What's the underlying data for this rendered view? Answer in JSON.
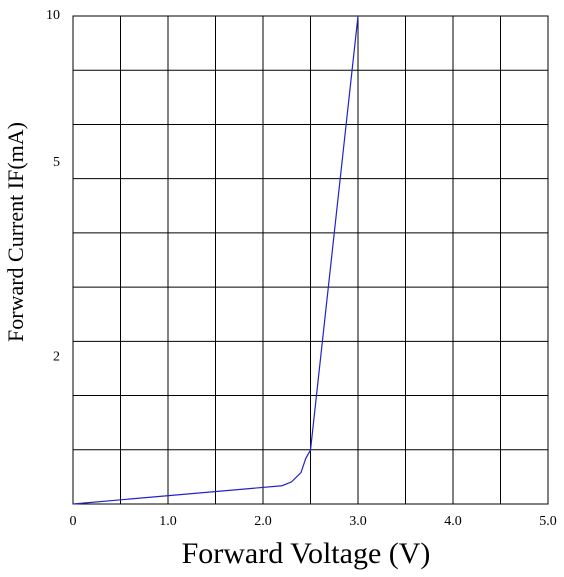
{
  "chart_data": {
    "type": "line",
    "xlabel": "Forward  Voltage  (V)",
    "ylabel": "Forward Current IF(mA)",
    "xlim": [
      0,
      5
    ],
    "xticks": [
      0,
      {
        "value": 1,
        "label": "1.0"
      },
      {
        "value": 2,
        "label": "2.0"
      },
      {
        "value": 3,
        "label": "3.0"
      },
      {
        "value": 4,
        "label": "4.0"
      },
      {
        "value": 5,
        "label": "5.0"
      }
    ],
    "ylim": [
      1,
      10
    ],
    "yticks": [
      2,
      5,
      10
    ],
    "ylog": true,
    "x": [
      0,
      2.2,
      2.3,
      2.4,
      2.45,
      2.5,
      3.0
    ],
    "series": [
      {
        "color": "#2222cc",
        "values": [
          1,
          1.09,
          1.11,
          1.16,
          1.24,
          1.29,
          10
        ]
      }
    ]
  }
}
